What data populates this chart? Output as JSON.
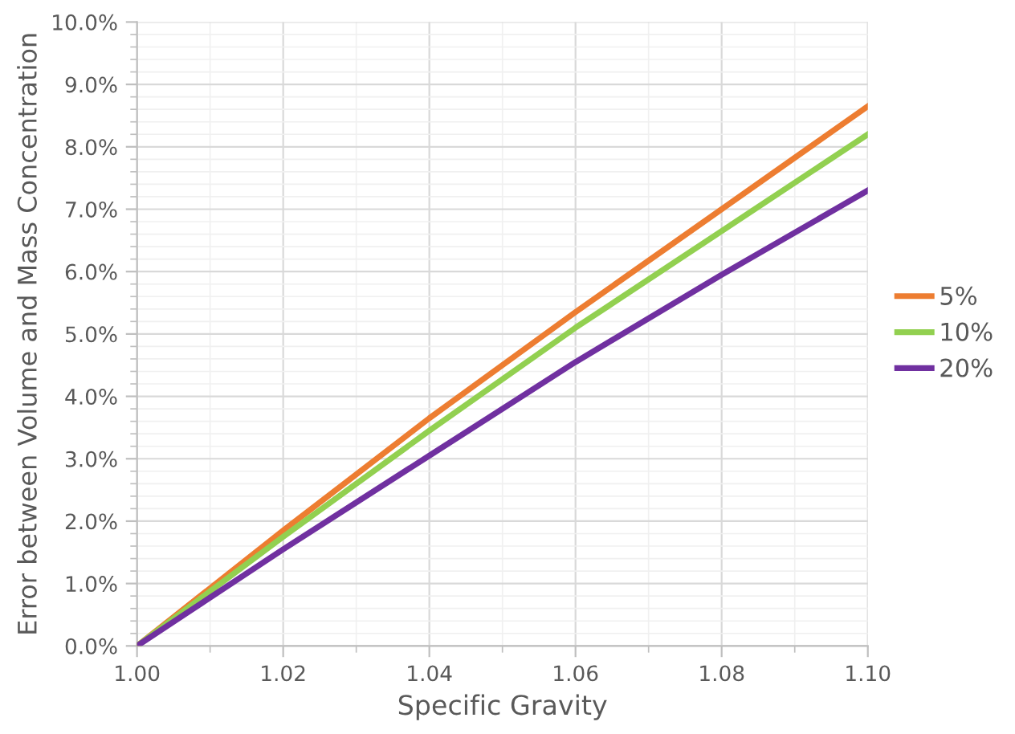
{
  "chart_data": {
    "type": "line",
    "xlabel": "Specific Gravity",
    "ylabel": "Error between Volume and Mass Concentration",
    "x": [
      1.0,
      1.02,
      1.04,
      1.06,
      1.08,
      1.1
    ],
    "series": [
      {
        "name": "5%",
        "color": "#ed7d31",
        "values": [
          0,
          1.85,
          3.65,
          5.35,
          7.0,
          8.65
        ]
      },
      {
        "name": "10%",
        "color": "#92d050",
        "values": [
          0,
          1.75,
          3.45,
          5.1,
          6.65,
          8.2
        ]
      },
      {
        "name": "20%",
        "color": "#7030a0",
        "values": [
          0,
          1.55,
          3.05,
          4.55,
          5.95,
          7.3
        ]
      }
    ],
    "xlim": [
      1.0,
      1.1
    ],
    "xticks": [
      {
        "value": 1.0,
        "label": "1.00"
      },
      {
        "value": 1.02,
        "label": "1.02"
      },
      {
        "value": 1.04,
        "label": "1.04"
      },
      {
        "value": 1.06,
        "label": "1.06"
      },
      {
        "value": 1.08,
        "label": "1.08"
      },
      {
        "value": 1.1,
        "label": "1.10"
      }
    ],
    "ylim": [
      0,
      10
    ],
    "yticks": [
      {
        "value": 0,
        "label": "0.0%"
      },
      {
        "value": 1,
        "label": "1.0%"
      },
      {
        "value": 2,
        "label": "2.0%"
      },
      {
        "value": 3,
        "label": "3.0%"
      },
      {
        "value": 4,
        "label": "4.0%"
      },
      {
        "value": 5,
        "label": "5.0%"
      },
      {
        "value": 6,
        "label": "6.0%"
      },
      {
        "value": 7,
        "label": "7.0%"
      },
      {
        "value": 8,
        "label": "8.0%"
      },
      {
        "value": 9,
        "label": "9.0%"
      },
      {
        "value": 10,
        "label": "10.0%"
      }
    ],
    "grid": true,
    "legend": "right",
    "marker": "none",
    "line_style": "solid"
  }
}
